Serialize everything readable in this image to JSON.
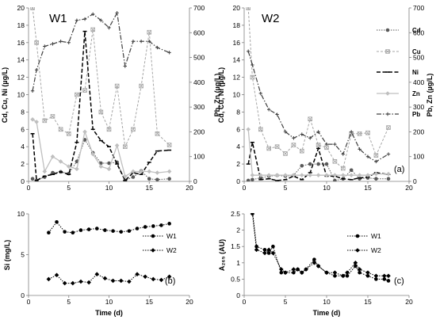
{
  "panel_labels": {
    "top_right": "(a)",
    "bottom_left": "(b)",
    "bottom_right": "(c)"
  },
  "legend_top": [
    "Cd",
    "Cu",
    "Ni",
    "Zn",
    "Pb"
  ],
  "legend_bottom": [
    "W1",
    "W2"
  ],
  "colors": {
    "Cd": "#595959",
    "Cu": "#a6a6a6",
    "Ni": "#000000",
    "Zn": "#bfbfbf",
    "Pb": "#404040",
    "W1": "#000000",
    "W2": "#000000"
  },
  "chart_data": [
    {
      "type": "line",
      "title": "W1",
      "xlabel": "",
      "ylabel": "Cd, Cu, Ni (µg/L)",
      "ylabel_right": "Pb, Zn (µg/L)",
      "xlim": [
        0,
        20
      ],
      "ylim": [
        0,
        20
      ],
      "ylim_right": [
        0,
        700
      ],
      "xticks": [
        0,
        5,
        10,
        15,
        20
      ],
      "yticks": [
        0,
        2,
        4,
        6,
        8,
        10,
        12,
        14,
        16,
        18,
        20
      ],
      "yticks_right": [
        0,
        100,
        200,
        300,
        400,
        500,
        600,
        700
      ],
      "grid": false,
      "legend": "none",
      "series": [
        {
          "name": "Cd",
          "axis": "left",
          "x": [
            0.5,
            1,
            2,
            3,
            4,
            5,
            6,
            7,
            8,
            9,
            10,
            11,
            12,
            13,
            14,
            15,
            16,
            17.5
          ],
          "y": [
            0.3,
            0.1,
            0.5,
            1.0,
            1.1,
            0.9,
            2.3,
            4.8,
            3.3,
            2.1,
            2.1,
            2.2,
            0.1,
            0.5,
            1.2,
            0.3,
            0.2,
            0.3
          ]
        },
        {
          "name": "Cu",
          "axis": "left",
          "x": [
            0.5,
            1,
            2,
            3,
            4,
            5,
            6,
            7,
            8,
            9,
            10,
            11,
            12,
            13,
            14,
            15,
            16,
            17.5
          ],
          "y": [
            20.0,
            16.0,
            7.0,
            7.5,
            6.0,
            5.5,
            10.0,
            10.5,
            17.5,
            8.0,
            6.0,
            11.0,
            4.0,
            6.0,
            11.0,
            17.2,
            5.5,
            4.2
          ]
        },
        {
          "name": "Ni",
          "axis": "left",
          "x": [
            0.5,
            1,
            2,
            3,
            4,
            5,
            6,
            7,
            8,
            9,
            10,
            11,
            12,
            13,
            14,
            15,
            16,
            17.5
          ],
          "y": [
            5.5,
            0.1,
            0.6,
            0.8,
            1.1,
            0.8,
            4.5,
            17.3,
            6.0,
            4.7,
            4.0,
            2.0,
            0.1,
            1.0,
            0.8,
            2.2,
            3.5,
            3.6
          ]
        },
        {
          "name": "Zn",
          "axis": "right",
          "x": [
            0.5,
            1,
            2,
            3,
            4,
            5,
            6,
            7,
            8,
            9,
            10,
            11,
            12,
            13,
            14,
            15,
            16,
            17.5
          ],
          "y": [
            250,
            240,
            40,
            100,
            80,
            60,
            50,
            200,
            110,
            60,
            50,
            145,
            20,
            40,
            40,
            40,
            35,
            40
          ]
        },
        {
          "name": "Pb",
          "axis": "right",
          "x": [
            0.5,
            1,
            2,
            3,
            4,
            5,
            6,
            7,
            8,
            9,
            10,
            11,
            12,
            13,
            14,
            15,
            16,
            17.5
          ],
          "y": [
            365,
            450,
            545,
            555,
            565,
            560,
            650,
            655,
            675,
            650,
            620,
            680,
            465,
            565,
            565,
            565,
            540,
            520
          ]
        }
      ]
    },
    {
      "type": "line",
      "title": "W2",
      "xlabel": "",
      "ylabel": "Cd, Cu, Ni (µg/L)",
      "ylabel_right": "Pb, Zn (µg/L)",
      "xlim": [
        0,
        20
      ],
      "ylim": [
        0,
        20
      ],
      "ylim_right": [
        0,
        700
      ],
      "xticks": [
        0,
        5,
        10,
        15,
        20
      ],
      "yticks": [
        0,
        2,
        4,
        6,
        8,
        10,
        12,
        14,
        16,
        18,
        20
      ],
      "yticks_right": [
        0,
        100,
        200,
        300,
        400,
        500,
        600,
        700
      ],
      "grid": false,
      "legend": "right",
      "series": [
        {
          "name": "Cd",
          "axis": "left",
          "x": [
            0.5,
            1,
            2,
            3,
            4,
            5,
            6,
            7,
            8,
            9,
            10,
            11,
            12,
            13,
            14,
            15,
            16,
            17.5
          ],
          "y": [
            0.1,
            0.2,
            0.4,
            0.6,
            0.7,
            0.6,
            0.7,
            1.8,
            2.0,
            2.0,
            2.0,
            0.1,
            0.3,
            1.3,
            0.3,
            0.4,
            0.3,
            0.3
          ]
        },
        {
          "name": "Cu",
          "axis": "left",
          "x": [
            0.5,
            1,
            2,
            3,
            4,
            5,
            6,
            7,
            8,
            9,
            10,
            11,
            12,
            13,
            14,
            15,
            16,
            17.5
          ],
          "y": [
            20.0,
            12.0,
            6.0,
            3.8,
            4.0,
            3.2,
            4.2,
            3.5,
            7.2,
            4.2,
            3.9,
            2.3,
            1.5,
            5.5,
            5.5,
            5.6,
            3.0,
            6.2
          ]
        },
        {
          "name": "Ni",
          "axis": "left",
          "x": [
            0.5,
            1,
            2,
            3,
            4,
            5,
            6,
            7,
            8,
            9,
            10,
            11,
            12,
            13,
            14,
            15,
            16,
            17.5
          ],
          "y": [
            2.0,
            4.5,
            0.2,
            0.3,
            0.1,
            0.2,
            0.6,
            0.2,
            1.0,
            3.8,
            0.6,
            0.6,
            0.3,
            0.2,
            0.4,
            0.5,
            1.0,
            0.8
          ]
        },
        {
          "name": "Zn",
          "axis": "right",
          "x": [
            0.5,
            1,
            2,
            3,
            4,
            5,
            6,
            7,
            8,
            9,
            10,
            11,
            12,
            13,
            14,
            15,
            16,
            17.5
          ],
          "y": [
            210,
            25,
            25,
            25,
            25,
            25,
            25,
            25,
            25,
            25,
            25,
            25,
            25,
            25,
            25,
            25,
            30,
            30
          ]
        },
        {
          "name": "Pb",
          "axis": "right",
          "x": [
            0.5,
            1,
            2,
            3,
            4,
            5,
            6,
            7,
            8,
            9,
            10,
            11,
            12,
            13,
            14,
            15,
            16,
            17.5
          ],
          "y": [
            525,
            470,
            355,
            290,
            270,
            200,
            175,
            190,
            175,
            200,
            150,
            150,
            110,
            200,
            130,
            100,
            80,
            110
          ]
        }
      ]
    },
    {
      "type": "line",
      "title": "",
      "xlabel": "Time (d)",
      "ylabel": "Si (mg/L)",
      "xlim": [
        0,
        20
      ],
      "ylim": [
        0,
        10
      ],
      "xticks": [
        0,
        5,
        10,
        15,
        20
      ],
      "yticks": [
        0,
        5,
        10
      ],
      "grid": false,
      "legend": "right",
      "series": [
        {
          "name": "W1",
          "x": [
            2.5,
            3.5,
            4.5,
            5.5,
            6.5,
            7.5,
            8.5,
            9.5,
            10.5,
            11.5,
            12.5,
            13.5,
            14.5,
            15.5,
            16.5,
            17.5
          ],
          "y": [
            7.7,
            9.0,
            7.8,
            7.7,
            8.0,
            8.1,
            8.2,
            8.0,
            7.9,
            7.8,
            7.9,
            8.2,
            8.4,
            8.5,
            8.6,
            8.8
          ]
        },
        {
          "name": "W2",
          "x": [
            2.5,
            3.5,
            4.5,
            5.5,
            6.5,
            7.5,
            8.5,
            9.5,
            10.5,
            11.5,
            12.5,
            13.5,
            14.5,
            15.5,
            16.5,
            17.5
          ],
          "y": [
            2.0,
            2.5,
            1.5,
            1.5,
            1.7,
            1.6,
            2.6,
            2.1,
            1.8,
            1.8,
            1.7,
            2.6,
            2.3,
            2.0,
            1.9,
            2.3
          ]
        }
      ]
    },
    {
      "type": "line",
      "title": "",
      "xlabel": "Time (d)",
      "ylabel": "A₂₆₅ (AU)",
      "xlim": [
        0,
        20
      ],
      "ylim": [
        0,
        2.5
      ],
      "xticks": [
        0,
        5,
        10,
        15,
        20
      ],
      "yticks": [
        0,
        0.5,
        1,
        1.5,
        2,
        2.5
      ],
      "grid": false,
      "legend": "right",
      "series": [
        {
          "name": "W1",
          "x": [
            1,
            1.5,
            2.5,
            3,
            3.5,
            4.5,
            5,
            6,
            6.5,
            7,
            7.5,
            8.5,
            9,
            10,
            11,
            12,
            12.5,
            13.5,
            14,
            15,
            16,
            17,
            17.5
          ],
          "y": [
            2.6,
            1.5,
            1.4,
            1.3,
            1.5,
            0.7,
            0.7,
            0.7,
            0.8,
            0.7,
            0.8,
            1.1,
            0.9,
            0.7,
            0.6,
            0.6,
            0.6,
            0.9,
            0.7,
            0.6,
            0.5,
            0.5,
            0.45
          ]
        },
        {
          "name": "W2",
          "x": [
            1,
            1.5,
            2.5,
            3,
            3.5,
            4.5,
            5,
            6,
            6.5,
            7,
            7.5,
            8.5,
            9,
            10,
            11,
            12,
            12.5,
            13.5,
            14,
            15,
            16,
            17,
            17.5
          ],
          "y": [
            2.5,
            1.4,
            1.3,
            1.4,
            1.3,
            0.8,
            0.7,
            0.8,
            0.8,
            0.7,
            0.8,
            1.0,
            0.9,
            0.7,
            0.7,
            0.6,
            0.7,
            1.0,
            0.8,
            0.7,
            0.6,
            0.6,
            0.6
          ]
        }
      ]
    }
  ]
}
